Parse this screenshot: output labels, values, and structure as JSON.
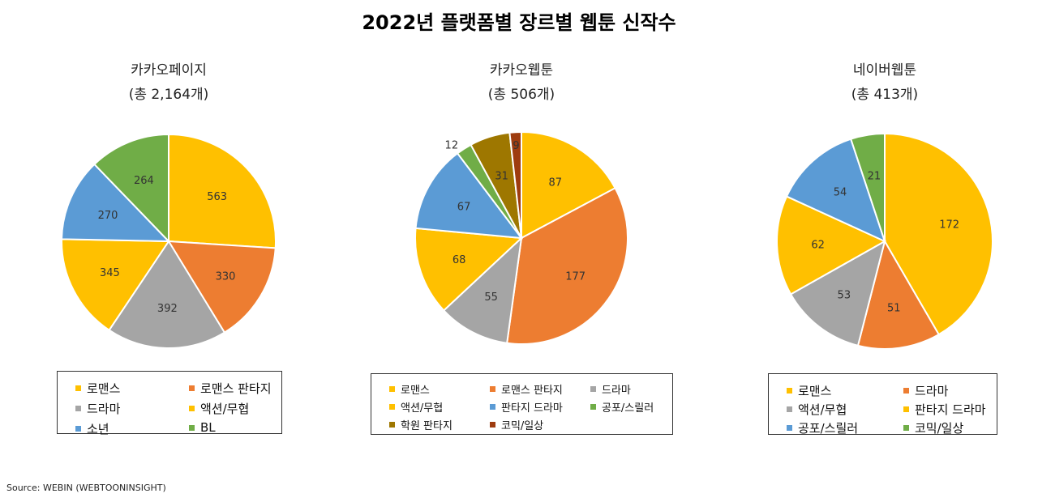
{
  "title": "2022년 플랫폼별 장르별 웹툰 신작수",
  "source": "Source: WEBIN (WEBTOONINSIGHT)",
  "chart_data": [
    {
      "type": "pie",
      "title": "카카오페이지",
      "subtitle": "(총 2,164개)",
      "start_angle_deg": 0,
      "direction": "clockwise",
      "slices": [
        {
          "label": "로맨스",
          "value": 563,
          "color": "#FFC000"
        },
        {
          "label": "로맨스 판타지",
          "value": 330,
          "color": "#ED7D31"
        },
        {
          "label": "드라마",
          "value": 392,
          "color": "#A5A5A5"
        },
        {
          "label": "액션/무협",
          "value": 345,
          "color": "#FFC000"
        },
        {
          "label": "소년",
          "value": 270,
          "color": "#5B9BD5"
        },
        {
          "label": "BL",
          "value": 264,
          "color": "#70AD47"
        }
      ],
      "legend_order": [
        "로맨스",
        "로맨스 판타지",
        "드라마",
        "액션/무협",
        "소년",
        "BL"
      ]
    },
    {
      "type": "pie",
      "title": "카카오웹툰",
      "subtitle": "(총 506개)",
      "start_angle_deg": 0,
      "direction": "clockwise",
      "slices": [
        {
          "label": "로맨스",
          "value": 87,
          "color": "#FFC000"
        },
        {
          "label": "로맨스 판타지",
          "value": 177,
          "color": "#ED7D31"
        },
        {
          "label": "드라마",
          "value": 55,
          "color": "#A5A5A5"
        },
        {
          "label": "액션/무협",
          "value": 68,
          "color": "#FFC000"
        },
        {
          "label": "판타지 드라마",
          "value": 67,
          "color": "#5B9BD5"
        },
        {
          "label": "공포/스릴러",
          "value": 12,
          "color": "#70AD47"
        },
        {
          "label": "학원 판타지",
          "value": 31,
          "color": "#9E7700"
        },
        {
          "label": "코믹/일상",
          "value": 9,
          "color": "#9E3C0F"
        }
      ],
      "legend_order": [
        "로맨스",
        "로맨스 판타지",
        "드라마",
        "액션/무협",
        "판타지 드라마",
        "공포/스릴러",
        "학원 판타지",
        "코믹/일상"
      ]
    },
    {
      "type": "pie",
      "title": "네이버웹툰",
      "subtitle": "(총 413개)",
      "start_angle_deg": 0,
      "direction": "clockwise",
      "slices": [
        {
          "label": "로맨스",
          "value": 172,
          "color": "#FFC000"
        },
        {
          "label": "드라마",
          "value": 51,
          "color": "#ED7D31"
        },
        {
          "label": "액션/무협",
          "value": 53,
          "color": "#A5A5A5"
        },
        {
          "label": "판타지 드라마",
          "value": 62,
          "color": "#FFC000"
        },
        {
          "label": "공포/스릴러",
          "value": 54,
          "color": "#5B9BD5"
        },
        {
          "label": "코믹/일상",
          "value": 21,
          "color": "#70AD47"
        }
      ],
      "legend_order": [
        "로맨스",
        "드라마",
        "액션/무협",
        "판타지 드라마",
        "공포/스릴러",
        "코믹/일상"
      ]
    }
  ]
}
